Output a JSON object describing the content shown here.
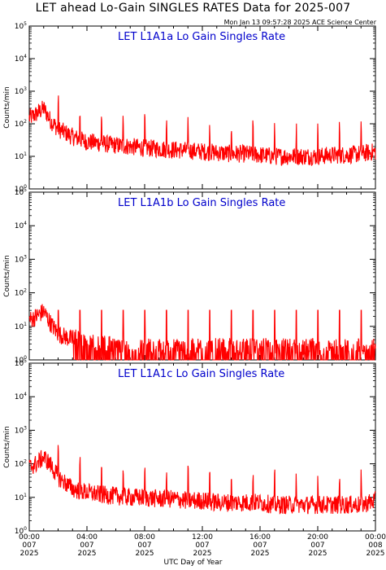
{
  "title": "LET ahead Lo-Gain SINGLES RATES Data for 2025-007",
  "timestamp": "Mon Jan 13 09:57:28 2025 ACE Science Center",
  "xlabel": "UTC Day of Year",
  "colors": {
    "line": "#ff0000",
    "panel_title": "#0000cc",
    "axes": "#000000"
  },
  "chart_data": [
    {
      "type": "line",
      "title": "LET L1A1a Lo Gain Singles Rate",
      "ylabel": "Counts/min",
      "yscale": "log",
      "ylim": [
        1,
        100000
      ],
      "xlim": [
        "2025-007 00:00",
        "2025-008 00:00"
      ],
      "x": [
        "00:00",
        "00:30",
        "01:00",
        "01:30",
        "02:00",
        "03:00",
        "04:00",
        "05:00",
        "06:00",
        "07:00",
        "08:00",
        "09:00",
        "10:00",
        "11:00",
        "12:00",
        "13:00",
        "14:00",
        "15:00",
        "16:00",
        "17:00",
        "18:00",
        "19:00",
        "20:00",
        "21:00",
        "22:00",
        "23:00",
        "24:00"
      ],
      "series": [
        {
          "values": [
            150,
            200,
            300,
            120,
            70,
            40,
            28,
            25,
            22,
            20,
            18,
            17,
            16,
            15,
            14,
            13,
            12,
            12,
            11,
            10,
            10,
            10,
            10,
            11,
            11,
            12,
            14
          ]
        }
      ],
      "spikes_every_minutes": 90
    },
    {
      "type": "line",
      "title": "LET L1A1b Lo Gain Singles Rate",
      "ylabel": "Counts/min",
      "yscale": "log",
      "ylim": [
        1,
        100000
      ],
      "xlim": [
        "2025-007 00:00",
        "2025-008 00:00"
      ],
      "x": [
        "00:00",
        "00:30",
        "01:00",
        "01:30",
        "02:00",
        "03:00",
        "04:00",
        "05:00",
        "06:00",
        "07:00",
        "08:00",
        "09:00",
        "10:00",
        "11:00",
        "12:00",
        "13:00",
        "14:00",
        "15:00",
        "16:00",
        "17:00",
        "18:00",
        "19:00",
        "20:00",
        "21:00",
        "22:00",
        "23:00",
        "24:00"
      ],
      "series": [
        {
          "values": [
            15,
            20,
            28,
            12,
            6,
            4,
            3,
            2.5,
            2.2,
            2,
            2,
            2,
            2,
            2,
            2,
            2,
            2,
            2,
            2,
            2,
            2,
            2,
            2,
            2,
            2,
            2,
            2
          ]
        }
      ],
      "spikes_every_minutes": 90
    },
    {
      "type": "line",
      "title": "LET L1A1c Lo Gain Singles Rate",
      "ylabel": "Counts/min",
      "yscale": "log",
      "ylim": [
        1,
        100000
      ],
      "xlim": [
        "2025-007 00:00",
        "2025-008 00:00"
      ],
      "x": [
        "00:00",
        "00:30",
        "01:00",
        "01:30",
        "02:00",
        "03:00",
        "04:00",
        "05:00",
        "06:00",
        "07:00",
        "08:00",
        "09:00",
        "10:00",
        "11:00",
        "12:00",
        "13:00",
        "14:00",
        "15:00",
        "16:00",
        "17:00",
        "18:00",
        "19:00",
        "20:00",
        "21:00",
        "22:00",
        "23:00",
        "24:00"
      ],
      "series": [
        {
          "values": [
            80,
            100,
            160,
            90,
            40,
            18,
            14,
            12,
            11,
            10,
            10,
            9,
            9,
            8,
            8,
            7,
            7,
            7,
            7,
            6,
            6,
            6,
            6,
            6,
            6,
            6,
            8
          ]
        }
      ],
      "spikes_every_minutes": 90
    }
  ],
  "ytick_labels": [
    {
      "base": "10",
      "exp": "0"
    },
    {
      "base": "10",
      "exp": "1"
    },
    {
      "base": "10",
      "exp": "2"
    },
    {
      "base": "10",
      "exp": "3"
    },
    {
      "base": "10",
      "exp": "4"
    },
    {
      "base": "10",
      "exp": "5"
    }
  ],
  "xtick_labels": [
    {
      "time": "00:00",
      "day": "007",
      "year": "2025"
    },
    {
      "time": "04:00",
      "day": "007",
      "year": "2025"
    },
    {
      "time": "08:00",
      "day": "007",
      "year": "2025"
    },
    {
      "time": "12:00",
      "day": "007",
      "year": "2025"
    },
    {
      "time": "16:00",
      "day": "007",
      "year": "2025"
    },
    {
      "time": "20:00",
      "day": "007",
      "year": "2025"
    },
    {
      "time": "00:00",
      "day": "008",
      "year": "2025"
    }
  ]
}
